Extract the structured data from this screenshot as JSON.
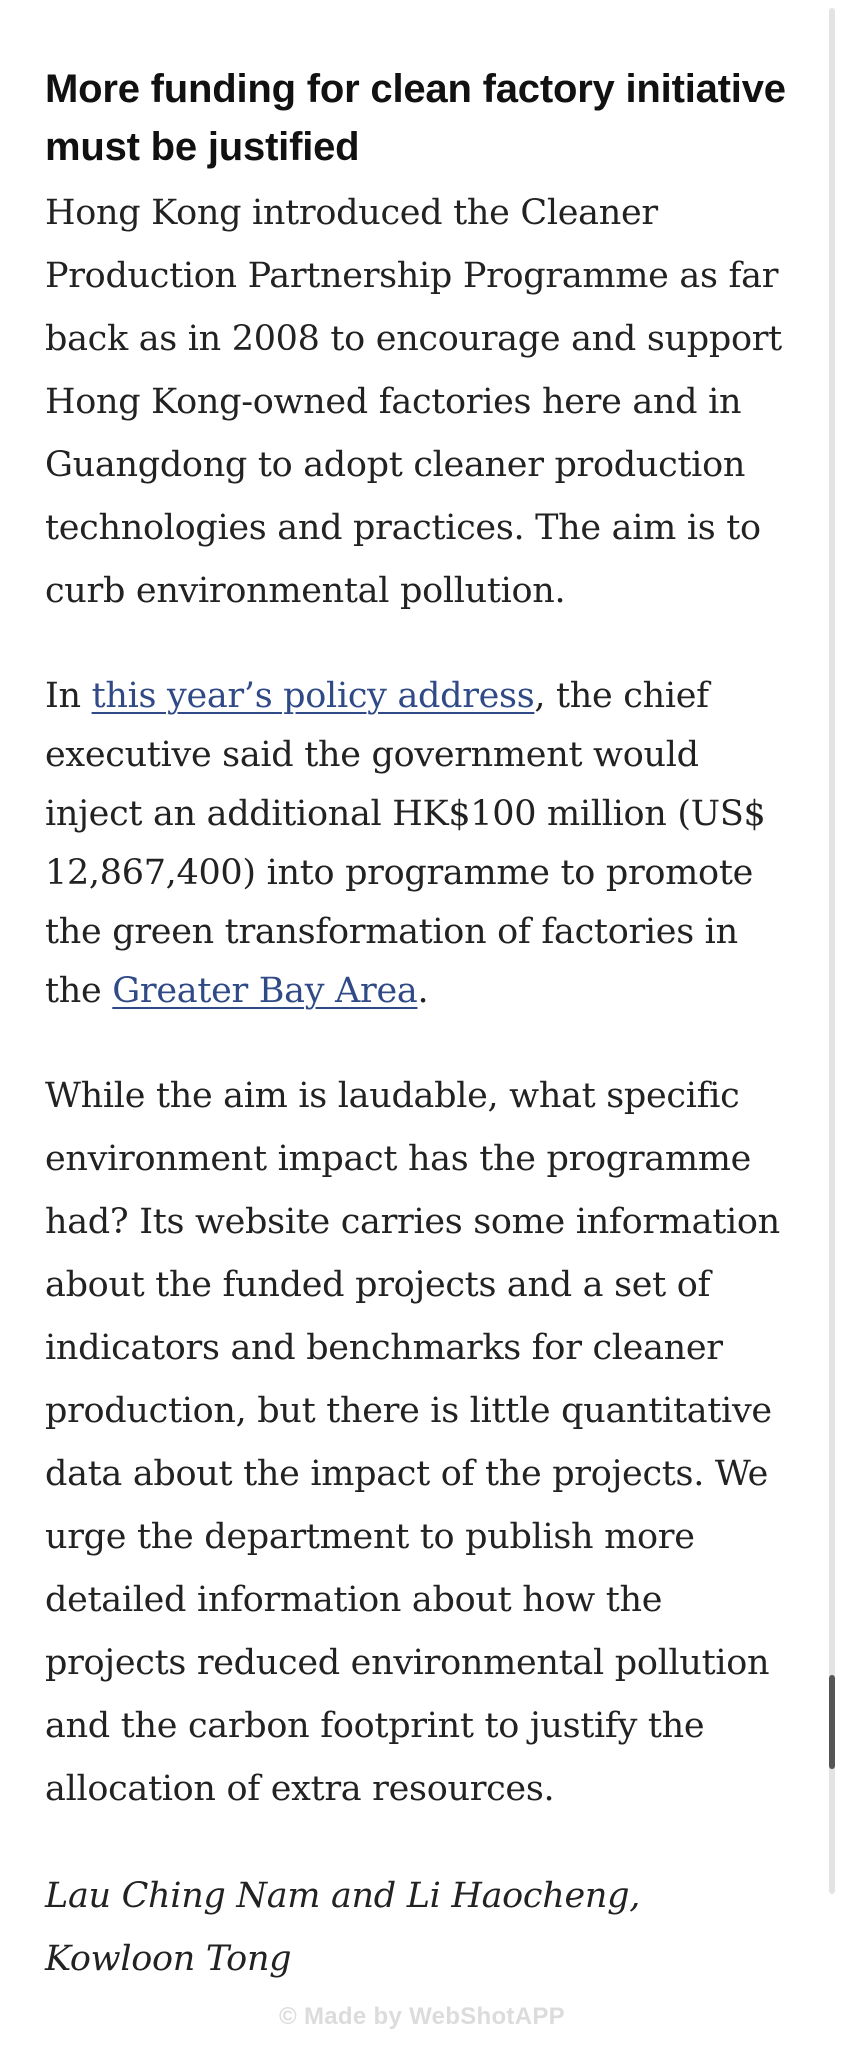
{
  "article": {
    "headline": "More funding for clean factory initiative must be justified",
    "paragraph1": "Hong Kong introduced the Cleaner Production Partnership Programme as far back as in 2008 to encourage and support Hong Kong-owned factories here and in Guangdong to adopt cleaner production technologies and practices. The aim is to curb environmental pollution.",
    "paragraph2": {
      "before_link1": "In ",
      "link1": "this year’s policy address",
      "between_links": ", the chief executive said the government would inject an additional HK$100 million (US$ 12,867,400) into programme to promote the green transformation of factories in the ",
      "link2": "Greater Bay Area",
      "after_link2": "."
    },
    "paragraph3": "While the aim is laudable, what specific environment impact has the programme had? Its website carries some information about the funded projects and a set of indicators and benchmarks for cleaner production, but there is little quantitative data about the impact of the projects. We urge the department to publish more detailed information about how the projects reduced environmental pollution and the carbon footprint to justify the allocation of extra resources.",
    "byline": "Lau Ching Nam and Li Haocheng, Kowloon Tong"
  },
  "watermark": "© Made by WebShotAPP",
  "scroll": {
    "position_fraction": 0.93,
    "visible_fraction": 0.05
  },
  "colors": {
    "link": "#2f4a86",
    "text": "#222222",
    "headline": "#111111"
  }
}
